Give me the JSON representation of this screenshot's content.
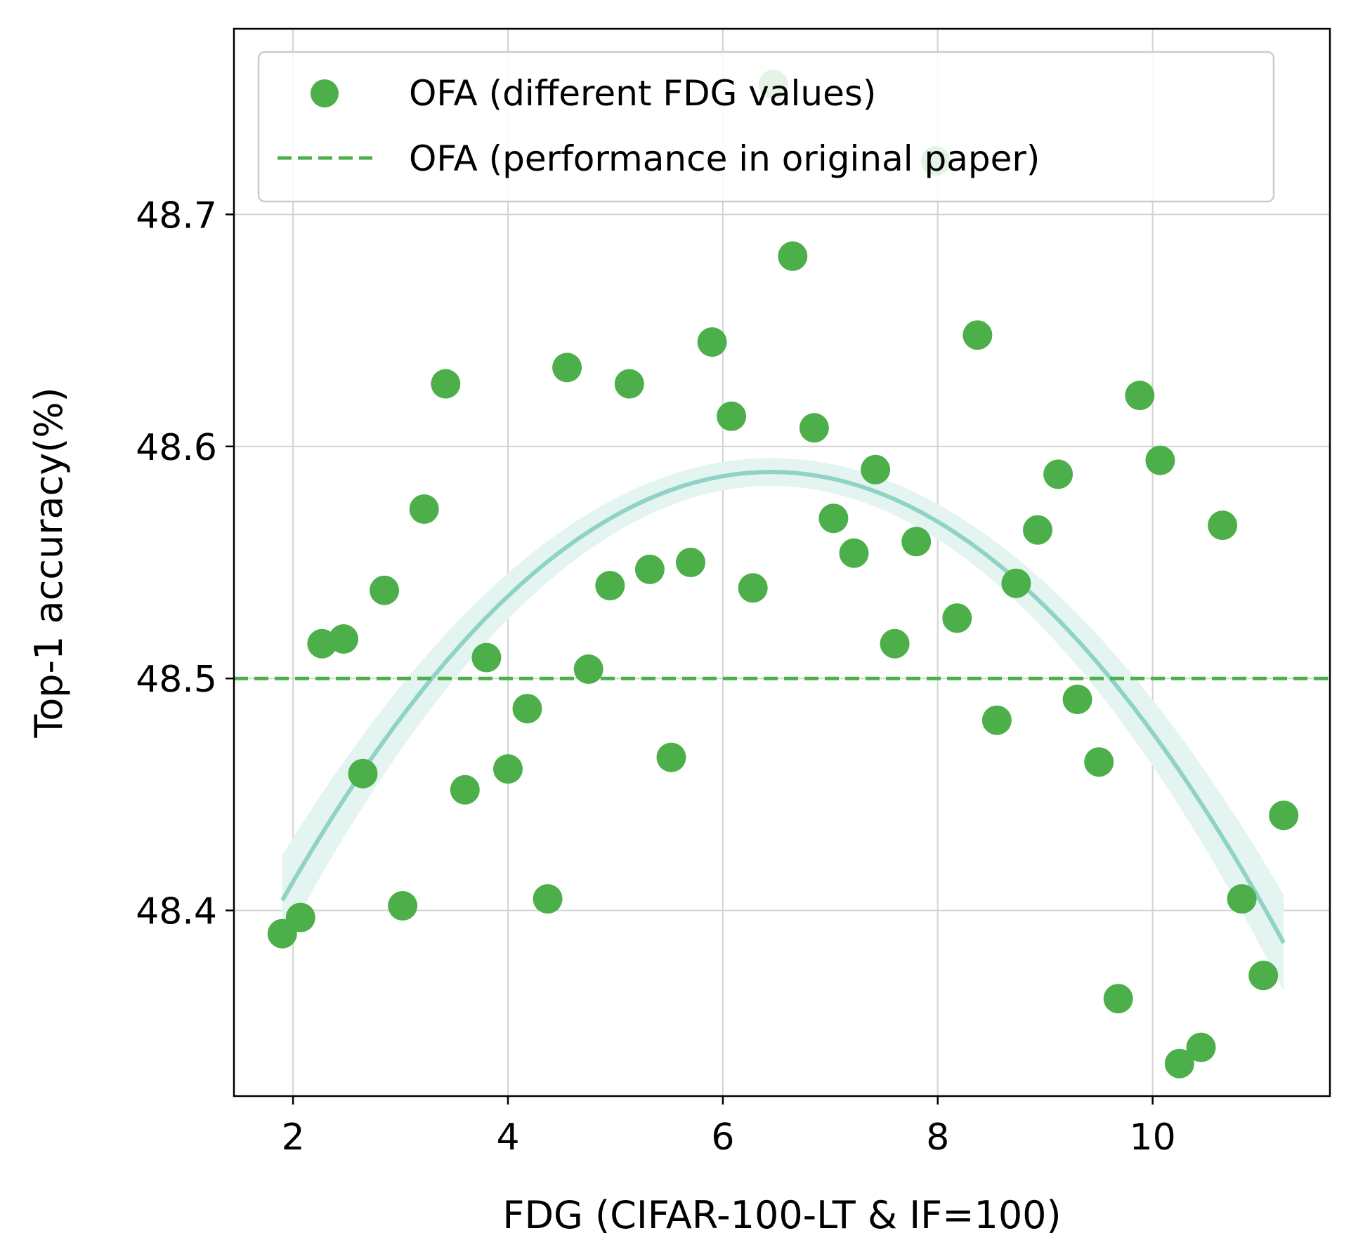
{
  "chart_data": {
    "type": "scatter",
    "xlabel": "FDG (CIFAR-100-LT & IF=100)",
    "ylabel": "Top-1 accuracy(%)",
    "xlim": [
      1.45,
      11.65
    ],
    "ylim": [
      48.32,
      48.78
    ],
    "x_ticks": [
      2,
      4,
      6,
      8,
      10
    ],
    "x_tick_labels": [
      "2",
      "4",
      "6",
      "8",
      "10"
    ],
    "y_ticks": [
      48.4,
      48.5,
      48.6,
      48.7
    ],
    "y_tick_labels": [
      "48.4",
      "48.5",
      "48.6",
      "48.7"
    ],
    "grid": true,
    "legend_position": "top",
    "colors": {
      "points": "#4caf4a",
      "reference": "#4caf4a",
      "fit": "#8fd3c7",
      "band": "#e4f4f0",
      "grid": "#d3d3d3"
    },
    "series": [
      {
        "name": "OFA (different FDG values)",
        "kind": "scatter",
        "points": [
          [
            1.9,
            48.39
          ],
          [
            2.07,
            48.397
          ],
          [
            2.27,
            48.515
          ],
          [
            2.47,
            48.517
          ],
          [
            2.65,
            48.459
          ],
          [
            2.85,
            48.538
          ],
          [
            3.02,
            48.402
          ],
          [
            3.22,
            48.573
          ],
          [
            3.42,
            48.627
          ],
          [
            3.6,
            48.452
          ],
          [
            3.8,
            48.509
          ],
          [
            4.0,
            48.461
          ],
          [
            4.18,
            48.487
          ],
          [
            4.37,
            48.405
          ],
          [
            4.55,
            48.634
          ],
          [
            4.75,
            48.504
          ],
          [
            4.95,
            48.54
          ],
          [
            5.13,
            48.627
          ],
          [
            5.32,
            48.547
          ],
          [
            5.52,
            48.466
          ],
          [
            5.7,
            48.55
          ],
          [
            5.9,
            48.645
          ],
          [
            6.08,
            48.613
          ],
          [
            6.28,
            48.539
          ],
          [
            6.47,
            48.756
          ],
          [
            6.65,
            48.682
          ],
          [
            6.85,
            48.608
          ],
          [
            7.03,
            48.569
          ],
          [
            7.22,
            48.554
          ],
          [
            7.42,
            48.59
          ],
          [
            7.6,
            48.515
          ],
          [
            7.8,
            48.559
          ],
          [
            7.98,
            48.723
          ],
          [
            8.18,
            48.526
          ],
          [
            8.37,
            48.648
          ],
          [
            8.55,
            48.482
          ],
          [
            8.73,
            48.541
          ],
          [
            8.93,
            48.564
          ],
          [
            9.12,
            48.588
          ],
          [
            9.3,
            48.491
          ],
          [
            9.5,
            48.464
          ],
          [
            9.68,
            48.362
          ],
          [
            9.88,
            48.622
          ],
          [
            10.07,
            48.594
          ],
          [
            10.25,
            48.334
          ],
          [
            10.45,
            48.341
          ],
          [
            10.65,
            48.566
          ],
          [
            10.83,
            48.405
          ],
          [
            11.03,
            48.372
          ],
          [
            11.22,
            48.441
          ]
        ]
      },
      {
        "name": "OFA (performance in original paper)",
        "kind": "hline",
        "y": 48.5
      },
      {
        "name": "quadratic fit",
        "kind": "fit",
        "x_range": [
          1.9,
          11.22
        ],
        "vertex_x": 6.45,
        "vertex_y": 48.589,
        "curvature": -0.00892
      }
    ]
  }
}
